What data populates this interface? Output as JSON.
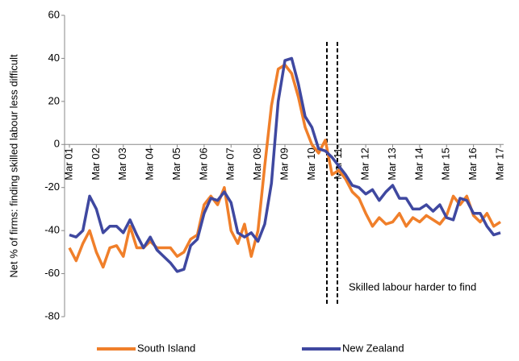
{
  "chart_data": {
    "type": "line",
    "y_label": "Net % of firms: finding skilled labour less difficult",
    "annotation": "Skilled labour harder to find",
    "categories": [
      "Mar 01",
      null,
      null,
      null,
      "Mar 02",
      null,
      null,
      null,
      "Mar 03",
      null,
      null,
      null,
      "Mar 04",
      null,
      null,
      null,
      "Mar 05",
      null,
      null,
      null,
      "Mar 06",
      null,
      null,
      null,
      "Mar 07",
      null,
      null,
      null,
      "Mar 08",
      null,
      null,
      null,
      "Mar 09",
      null,
      null,
      null,
      "Mar 10",
      null,
      null,
      null,
      "Mar 11",
      null,
      null,
      null,
      "Mar 12",
      null,
      null,
      null,
      "Mar 13",
      null,
      null,
      null,
      "Mar 14",
      null,
      null,
      null,
      "Mar 15",
      null,
      null,
      null,
      "Mar 16",
      null,
      null,
      null,
      "Mar 17"
    ],
    "series": [
      {
        "name": "South Island",
        "color": "#f07f2a",
        "values": [
          -48,
          -54,
          -46,
          -40,
          -50,
          -57,
          -48,
          -47,
          -52,
          -38,
          -48,
          -48,
          -45,
          -48,
          -48,
          -48,
          -52,
          -50,
          -44,
          -42,
          -28,
          -24,
          -28,
          -20,
          -40,
          -46,
          -37,
          -52,
          -40,
          -10,
          18,
          35,
          37,
          33,
          22,
          8,
          0,
          -4,
          2,
          -14,
          -12,
          -16,
          -22,
          -25,
          -32,
          -38,
          -34,
          -37,
          -36,
          -32,
          -38,
          -34,
          -36,
          -33,
          -35,
          -37,
          -33,
          -24,
          -28,
          -24,
          -33,
          -36,
          -32,
          -38,
          -36
        ]
      },
      {
        "name": "New Zealand",
        "color": "#3f48a0",
        "values": [
          -42,
          -43,
          -40,
          -24,
          -30,
          -41,
          -38,
          -38,
          -41,
          -35,
          -42,
          -48,
          -43,
          -49,
          -52,
          -55,
          -59,
          -58,
          -47,
          -44,
          -32,
          -25,
          -26,
          -22,
          -27,
          -41,
          -43,
          -41,
          -45,
          -37,
          -18,
          20,
          39,
          40,
          28,
          13,
          8,
          -2,
          -3,
          -6,
          -10,
          -14,
          -19,
          -20,
          -23,
          -21,
          -26,
          -22,
          -19,
          -25,
          -25,
          -30,
          -30,
          -28,
          -31,
          -28,
          -34,
          -35,
          -25,
          -26,
          -32,
          -32,
          -38,
          -42,
          -41
        ]
      }
    ],
    "ylim": [
      -80,
      60
    ],
    "yticks": [
      -80,
      -60,
      -40,
      -20,
      0,
      20,
      40,
      60
    ]
  }
}
